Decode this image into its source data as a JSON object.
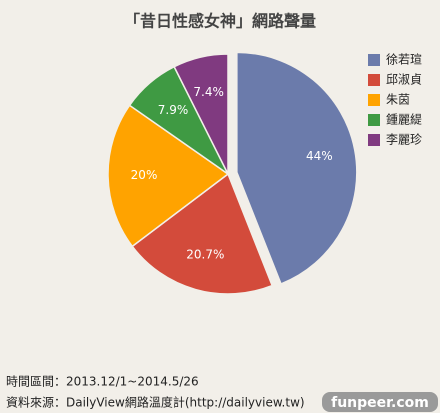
{
  "chart_data": {
    "type": "pie",
    "title": "「昔日性感女神」網路聲量",
    "categories": [
      "徐若瑄",
      "邱淑貞",
      "朱茵",
      "鍾麗緹",
      "李麗珍"
    ],
    "values": [
      44,
      20.7,
      20,
      7.9,
      7.4
    ],
    "value_labels": [
      "44%",
      "20.7%",
      "20%",
      "7.9%",
      "7.4%"
    ],
    "colors": [
      "#6b7bab",
      "#d34b3b",
      "#ffa300",
      "#3f9a43",
      "#803a80"
    ],
    "legend": "right",
    "footnotes": [
      "時間區間：2013.12/1~2014.5/26",
      "資料來源：DailyView網路溫度計(http://dailyview.tw)"
    ],
    "watermark": "funpeer.com"
  }
}
